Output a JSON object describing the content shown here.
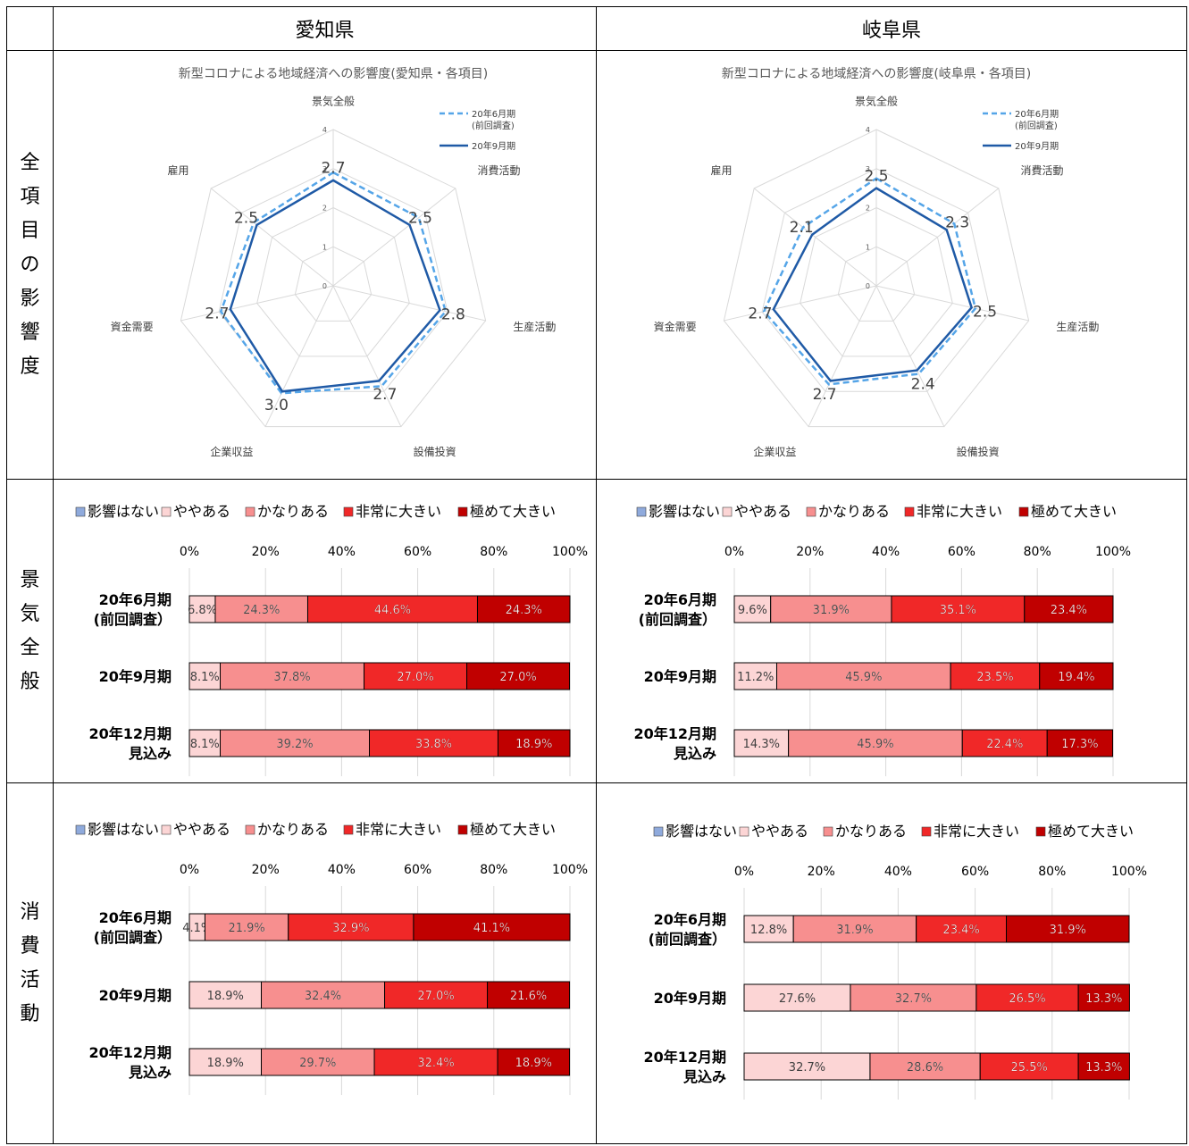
{
  "headers": {
    "col1": "愛知県",
    "col2": "岐阜県"
  },
  "row_labels": {
    "r1": [
      "全",
      "項",
      "目",
      "の",
      "影",
      "響",
      "度"
    ],
    "r2": [
      "景",
      "気",
      "全",
      "般"
    ],
    "r3": [
      "消",
      "費",
      "活",
      "動"
    ]
  },
  "radar_axes": [
    "景気全般",
    "消費活動",
    "生産活動",
    "設備投資",
    "企業収益",
    "資金需要",
    "雇用"
  ],
  "radar_ticks": [
    "0",
    "1",
    "2",
    "3",
    "4"
  ],
  "radar_legend": {
    "prev": "20年6月期",
    "prev2": "(前回調査)",
    "curr": "20年9月期"
  },
  "bar_legend": [
    "影響はない",
    "ややある",
    "かなりある",
    "非常に大きい",
    "極めて大きい"
  ],
  "bar_colors": [
    "#8faadc",
    "#fcd5d5",
    "#f78f8f",
    "#f02828",
    "#c00000"
  ],
  "bar_ticks": [
    "0%",
    "20%",
    "40%",
    "60%",
    "80%",
    "100%"
  ],
  "bar_categories": [
    [
      "20年6月期",
      "(前回調査）"
    ],
    [
      "20年9月期"
    ],
    [
      "20年12月期",
      "見込み"
    ]
  ],
  "chart_data": [
    {
      "type": "radar",
      "title": "新型コロナによる地域経済への影響度(愛知県・各項目)",
      "categories": [
        "景気全般",
        "消費活動",
        "生産活動",
        "設備投資",
        "企業収益",
        "資金需要",
        "雇用"
      ],
      "ylim": [
        0,
        4
      ],
      "series": [
        {
          "name": "20年6月期 (前回調査)",
          "values": [
            2.9,
            2.8,
            2.95,
            2.85,
            3.05,
            2.95,
            2.6
          ]
        },
        {
          "name": "20年9月期",
          "values": [
            2.7,
            2.5,
            2.8,
            2.7,
            3.0,
            2.7,
            2.5
          ]
        }
      ],
      "data_labels": [
        "2.7",
        "2.5",
        "2.8",
        "2.7",
        "3.0",
        "2.7",
        "2.5"
      ]
    },
    {
      "type": "radar",
      "title": "新型コロナによる地域経済への影響度(岐阜県・各項目)",
      "categories": [
        "景気全般",
        "消費活動",
        "生産活動",
        "設備投資",
        "企業収益",
        "資金需要",
        "雇用"
      ],
      "ylim": [
        0,
        4
      ],
      "series": [
        {
          "name": "20年6月期 (前回調査)",
          "values": [
            2.75,
            2.55,
            2.6,
            2.5,
            2.8,
            2.95,
            2.4
          ]
        },
        {
          "name": "20年9月期",
          "values": [
            2.5,
            2.3,
            2.5,
            2.4,
            2.7,
            2.7,
            2.1
          ]
        }
      ],
      "data_labels": [
        "2.5",
        "2.3",
        "2.5",
        "2.4",
        "2.7",
        "2.7",
        "2.1"
      ]
    },
    {
      "type": "bar",
      "orientation": "horizontal",
      "stacked": "percent",
      "row": "景気全般",
      "region": "愛知県",
      "categories": [
        "20年6月期(前回調査)",
        "20年9月期",
        "20年12月期見込み"
      ],
      "series": [
        {
          "name": "影響はない",
          "values": [
            0,
            0,
            0
          ]
        },
        {
          "name": "ややある",
          "values": [
            6.8,
            8.1,
            8.1
          ]
        },
        {
          "name": "かなりある",
          "values": [
            24.3,
            37.8,
            39.2
          ]
        },
        {
          "name": "非常に大きい",
          "values": [
            44.6,
            27.0,
            33.8
          ]
        },
        {
          "name": "極めて大きい",
          "values": [
            24.3,
            27.0,
            18.9
          ]
        }
      ]
    },
    {
      "type": "bar",
      "orientation": "horizontal",
      "stacked": "percent",
      "row": "景気全般",
      "region": "岐阜県",
      "categories": [
        "20年6月期(前回調査)",
        "20年9月期",
        "20年12月期見込み"
      ],
      "series": [
        {
          "name": "影響はない",
          "values": [
            0,
            0,
            0
          ]
        },
        {
          "name": "ややある",
          "values": [
            9.6,
            11.2,
            14.3
          ]
        },
        {
          "name": "かなりある",
          "values": [
            31.9,
            45.9,
            45.9
          ]
        },
        {
          "name": "非常に大きい",
          "values": [
            35.1,
            23.5,
            22.4
          ]
        },
        {
          "name": "極めて大きい",
          "values": [
            23.4,
            19.4,
            17.3
          ]
        }
      ]
    },
    {
      "type": "bar",
      "orientation": "horizontal",
      "stacked": "percent",
      "row": "消費活動",
      "region": "愛知県",
      "categories": [
        "20年6月期(前回調査)",
        "20年9月期",
        "20年12月期見込み"
      ],
      "series": [
        {
          "name": "影響はない",
          "values": [
            0,
            0,
            0
          ]
        },
        {
          "name": "ややある",
          "values": [
            4.1,
            18.9,
            18.9
          ]
        },
        {
          "name": "かなりある",
          "values": [
            21.9,
            32.4,
            29.7
          ]
        },
        {
          "name": "非常に大きい",
          "values": [
            32.9,
            27.0,
            32.4
          ]
        },
        {
          "name": "極めて大きい",
          "values": [
            41.1,
            21.6,
            18.9
          ]
        }
      ]
    },
    {
      "type": "bar",
      "orientation": "horizontal",
      "stacked": "percent",
      "row": "消費活動",
      "region": "岐阜県",
      "categories": [
        "20年6月期(前回調査)",
        "20年9月期",
        "20年12月期見込み"
      ],
      "series": [
        {
          "name": "影響はない",
          "values": [
            0,
            0,
            0
          ]
        },
        {
          "name": "ややある",
          "values": [
            12.8,
            27.6,
            32.7
          ]
        },
        {
          "name": "かなりある",
          "values": [
            31.9,
            32.7,
            28.6
          ]
        },
        {
          "name": "非常に大きい",
          "values": [
            23.4,
            26.5,
            25.5
          ]
        },
        {
          "name": "極めて大きい",
          "values": [
            31.9,
            13.3,
            13.3
          ]
        }
      ]
    }
  ]
}
